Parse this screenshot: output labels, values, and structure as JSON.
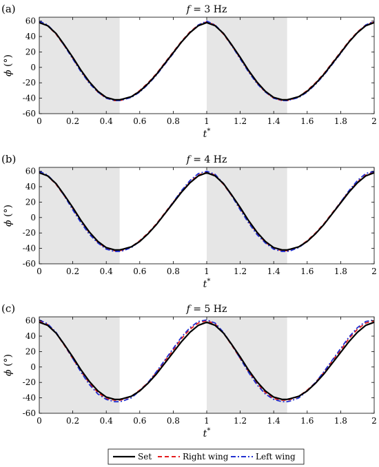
{
  "chart_data": [
    {
      "type": "line",
      "panel_label": "(a)",
      "title_var": "f",
      "title_val": " = 3 Hz",
      "ylabel_sym": "ϕ",
      "ylabel_unit": "(°)",
      "xlabel_base": "t",
      "xlabel_sup": "*",
      "xlim": [
        0,
        2
      ],
      "ylim": [
        -60,
        65
      ],
      "xticks": [
        "0",
        "0.2",
        "0.4",
        "0.6",
        "0.8",
        "1",
        "1.2",
        "1.4",
        "1.6",
        "1.8",
        "2"
      ],
      "yticks": [
        "-60",
        "-40",
        "-20",
        "0",
        "20",
        "40",
        "60"
      ],
      "shaded_intervals": [
        [
          0,
          0.48
        ],
        [
          1,
          1.48
        ]
      ],
      "x": [
        0,
        0.05,
        0.1,
        0.15,
        0.2,
        0.25,
        0.3,
        0.35,
        0.4,
        0.45,
        0.48,
        0.5,
        0.55,
        0.6,
        0.65,
        0.7,
        0.75,
        0.8,
        0.85,
        0.9,
        0.95,
        1.0,
        1.05,
        1.1,
        1.15,
        1.2,
        1.25,
        1.3,
        1.35,
        1.4,
        1.45,
        1.48,
        1.5,
        1.55,
        1.6,
        1.65,
        1.7,
        1.75,
        1.8,
        1.85,
        1.9,
        1.95,
        2.0
      ],
      "series": [
        {
          "name": "Set",
          "color": "#000000",
          "values": [
            58,
            54,
            44,
            29,
            13,
            -4,
            -19,
            -31,
            -39,
            -42,
            -42,
            -41,
            -38,
            -31,
            -21,
            -9,
            5,
            19,
            33,
            45,
            54,
            58,
            54,
            44,
            29,
            13,
            -4,
            -19,
            -31,
            -39,
            -42,
            -42,
            -41,
            -38,
            -31,
            -21,
            -9,
            5,
            19,
            33,
            45,
            54,
            58
          ]
        },
        {
          "name": "Right wing",
          "color": "#e41a1c",
          "values": [
            59,
            54,
            43,
            28,
            12,
            -5,
            -20,
            -32,
            -40,
            -43,
            -43,
            -42,
            -38,
            -30,
            -20,
            -8,
            6,
            20,
            34,
            46,
            55,
            59,
            55,
            43,
            28,
            12,
            -5,
            -20,
            -32,
            -40,
            -43,
            -43,
            -42,
            -38,
            -30,
            -20,
            -8,
            6,
            20,
            34,
            46,
            55,
            59
          ]
        },
        {
          "name": "Left wing",
          "color": "#1f2fd0",
          "values": [
            60,
            55,
            44,
            28,
            11,
            -6,
            -21,
            -32,
            -40,
            -43,
            -43,
            -42,
            -39,
            -32,
            -22,
            -10,
            4,
            18,
            33,
            45,
            55,
            60,
            55,
            44,
            28,
            11,
            -6,
            -21,
            -32,
            -40,
            -43,
            -43,
            -42,
            -39,
            -32,
            -22,
            -10,
            4,
            18,
            33,
            45,
            55,
            60
          ]
        }
      ]
    },
    {
      "type": "line",
      "panel_label": "(b)",
      "title_var": "f",
      "title_val": " = 4 Hz",
      "ylabel_sym": "ϕ",
      "ylabel_unit": "(°)",
      "xlabel_base": "t",
      "xlabel_sup": "*",
      "xlim": [
        0,
        2
      ],
      "ylim": [
        -60,
        65
      ],
      "xticks": [
        "0",
        "0.2",
        "0.4",
        "0.6",
        "0.8",
        "1",
        "1.2",
        "1.4",
        "1.6",
        "1.8",
        "2"
      ],
      "yticks": [
        "-60",
        "-40",
        "-20",
        "0",
        "20",
        "40",
        "60"
      ],
      "shaded_intervals": [
        [
          0,
          0.48
        ],
        [
          1,
          1.48
        ]
      ],
      "x": [
        0,
        0.05,
        0.1,
        0.15,
        0.2,
        0.25,
        0.3,
        0.35,
        0.4,
        0.45,
        0.48,
        0.5,
        0.55,
        0.6,
        0.65,
        0.7,
        0.75,
        0.8,
        0.85,
        0.9,
        0.95,
        1.0,
        1.05,
        1.1,
        1.15,
        1.2,
        1.25,
        1.3,
        1.35,
        1.4,
        1.45,
        1.48,
        1.5,
        1.55,
        1.6,
        1.65,
        1.7,
        1.75,
        1.8,
        1.85,
        1.9,
        1.95,
        2.0
      ],
      "series": [
        {
          "name": "Set",
          "color": "#000000",
          "values": [
            58,
            54,
            44,
            29,
            13,
            -4,
            -19,
            -31,
            -39,
            -42,
            -42,
            -41,
            -38,
            -31,
            -21,
            -9,
            5,
            19,
            33,
            45,
            54,
            58,
            54,
            44,
            29,
            13,
            -4,
            -19,
            -31,
            -39,
            -42,
            -42,
            -41,
            -38,
            -31,
            -21,
            -9,
            5,
            19,
            33,
            45,
            54,
            58
          ]
        },
        {
          "name": "Right wing",
          "color": "#e41a1c",
          "values": [
            59,
            54,
            43,
            28,
            12,
            -5,
            -20,
            -32,
            -40,
            -43,
            -43,
            -42,
            -38,
            -30,
            -20,
            -8,
            6,
            20,
            34,
            46,
            55,
            59,
            55,
            43,
            28,
            12,
            -5,
            -20,
            -32,
            -40,
            -43,
            -43,
            -42,
            -38,
            -30,
            -20,
            -8,
            6,
            20,
            34,
            46,
            55,
            59
          ]
        },
        {
          "name": "Left wing",
          "color": "#1f2fd0",
          "values": [
            60,
            55,
            44,
            28,
            10,
            -7,
            -22,
            -33,
            -41,
            -44,
            -44,
            -43,
            -39,
            -31,
            -21,
            -9,
            5,
            20,
            35,
            48,
            57,
            60,
            56,
            44,
            28,
            10,
            -7,
            -22,
            -33,
            -41,
            -44,
            -44,
            -43,
            -39,
            -31,
            -21,
            -9,
            5,
            20,
            35,
            48,
            57,
            60
          ]
        }
      ]
    },
    {
      "type": "line",
      "panel_label": "(c)",
      "title_var": "f",
      "title_val": " = 5 Hz",
      "ylabel_sym": "ϕ",
      "ylabel_unit": "(°)",
      "xlabel_base": "t",
      "xlabel_sup": "*",
      "xlim": [
        0,
        2
      ],
      "ylim": [
        -60,
        65
      ],
      "xticks": [
        "0",
        "0.2",
        "0.4",
        "0.6",
        "0.8",
        "1",
        "1.2",
        "1.4",
        "1.6",
        "1.8",
        "2"
      ],
      "yticks": [
        "-60",
        "-40",
        "-20",
        "0",
        "20",
        "40",
        "60"
      ],
      "shaded_intervals": [
        [
          0,
          0.48
        ],
        [
          1,
          1.48
        ]
      ],
      "x": [
        0,
        0.05,
        0.1,
        0.15,
        0.2,
        0.25,
        0.3,
        0.35,
        0.4,
        0.45,
        0.48,
        0.5,
        0.55,
        0.6,
        0.65,
        0.7,
        0.75,
        0.8,
        0.85,
        0.9,
        0.95,
        1.0,
        1.05,
        1.1,
        1.15,
        1.2,
        1.25,
        1.3,
        1.35,
        1.4,
        1.45,
        1.48,
        1.5,
        1.55,
        1.6,
        1.65,
        1.7,
        1.75,
        1.8,
        1.85,
        1.9,
        1.95,
        2.0
      ],
      "series": [
        {
          "name": "Set",
          "color": "#000000",
          "values": [
            58,
            54,
            44,
            29,
            13,
            -4,
            -19,
            -31,
            -39,
            -42,
            -42,
            -41,
            -38,
            -31,
            -21,
            -9,
            5,
            19,
            33,
            45,
            54,
            58,
            54,
            44,
            29,
            13,
            -4,
            -19,
            -31,
            -39,
            -42,
            -42,
            -41,
            -38,
            -31,
            -21,
            -9,
            5,
            19,
            33,
            45,
            54,
            58
          ]
        },
        {
          "name": "Right wing",
          "color": "#e41a1c",
          "values": [
            60,
            55,
            44,
            28,
            11,
            -6,
            -21,
            -33,
            -41,
            -43,
            -43,
            -42,
            -38,
            -30,
            -20,
            -7,
            8,
            22,
            37,
            49,
            57,
            60,
            56,
            44,
            28,
            11,
            -6,
            -21,
            -33,
            -41,
            -43,
            -43,
            -42,
            -38,
            -30,
            -20,
            -7,
            8,
            22,
            37,
            49,
            57,
            60
          ]
        },
        {
          "name": "Left wing",
          "color": "#1f2fd0",
          "values": [
            61,
            56,
            45,
            29,
            11,
            -7,
            -23,
            -35,
            -42,
            -45,
            -45,
            -44,
            -40,
            -31,
            -20,
            -6,
            9,
            24,
            39,
            51,
            59,
            61,
            57,
            45,
            29,
            11,
            -7,
            -23,
            -35,
            -42,
            -45,
            -45,
            -44,
            -40,
            -31,
            -20,
            -6,
            9,
            24,
            39,
            51,
            59,
            61
          ]
        }
      ]
    }
  ],
  "legend": {
    "items": [
      {
        "label": "Set",
        "color": "#000000",
        "dash": "solid"
      },
      {
        "label": "Right wing",
        "color": "#e41a1c",
        "dash": "dashed"
      },
      {
        "label": "Left wing",
        "color": "#1f2fd0",
        "dash": "dashdot"
      }
    ]
  }
}
